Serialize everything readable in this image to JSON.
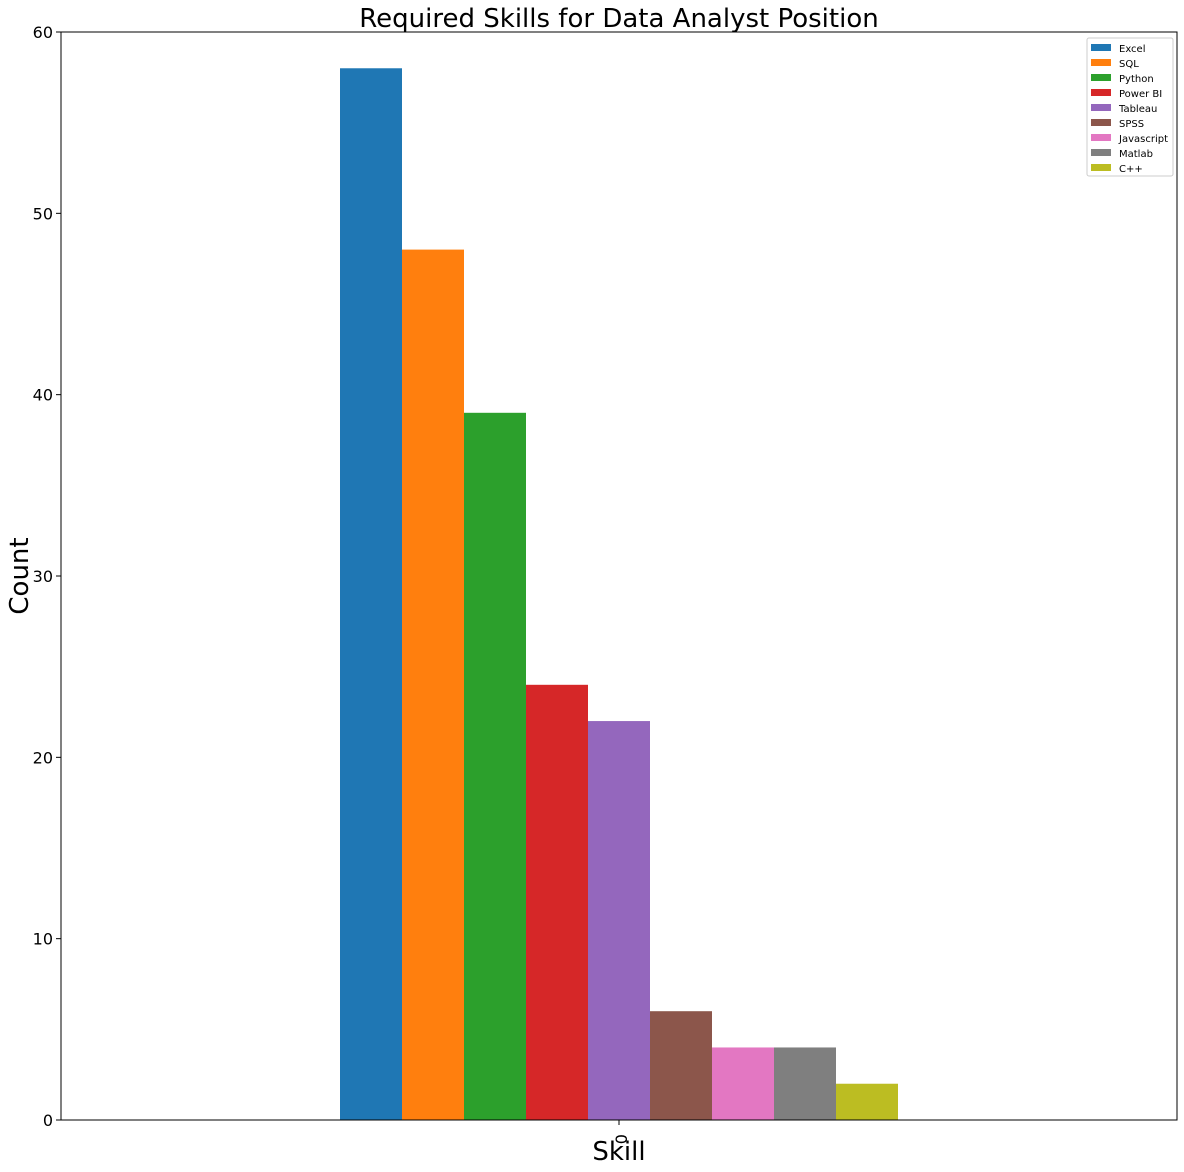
{
  "chart_data": {
    "type": "bar",
    "title": "Required Skills for Data Analyst Position",
    "xlabel": "Skill",
    "ylabel": "Count",
    "categories": [
      "0"
    ],
    "ylim": [
      0,
      60
    ],
    "yticks": [
      0,
      10,
      20,
      30,
      40,
      50,
      60
    ],
    "grid": false,
    "legend_position": "top-right",
    "series": [
      {
        "name": "Excel",
        "values": [
          58
        ],
        "color": "#1f77b4"
      },
      {
        "name": "SQL",
        "values": [
          48
        ],
        "color": "#ff7f0e"
      },
      {
        "name": "Python",
        "values": [
          39
        ],
        "color": "#2ca02c"
      },
      {
        "name": "Power BI",
        "values": [
          24
        ],
        "color": "#d62728"
      },
      {
        "name": "Tableau",
        "values": [
          22
        ],
        "color": "#9467bd"
      },
      {
        "name": "SPSS",
        "values": [
          6
        ],
        "color": "#8c564b"
      },
      {
        "name": "Javascript",
        "values": [
          4
        ],
        "color": "#e377c2"
      },
      {
        "name": "Matlab",
        "values": [
          4
        ],
        "color": "#7f7f7f"
      },
      {
        "name": "C++",
        "values": [
          2
        ],
        "color": "#bcbd22"
      }
    ]
  }
}
